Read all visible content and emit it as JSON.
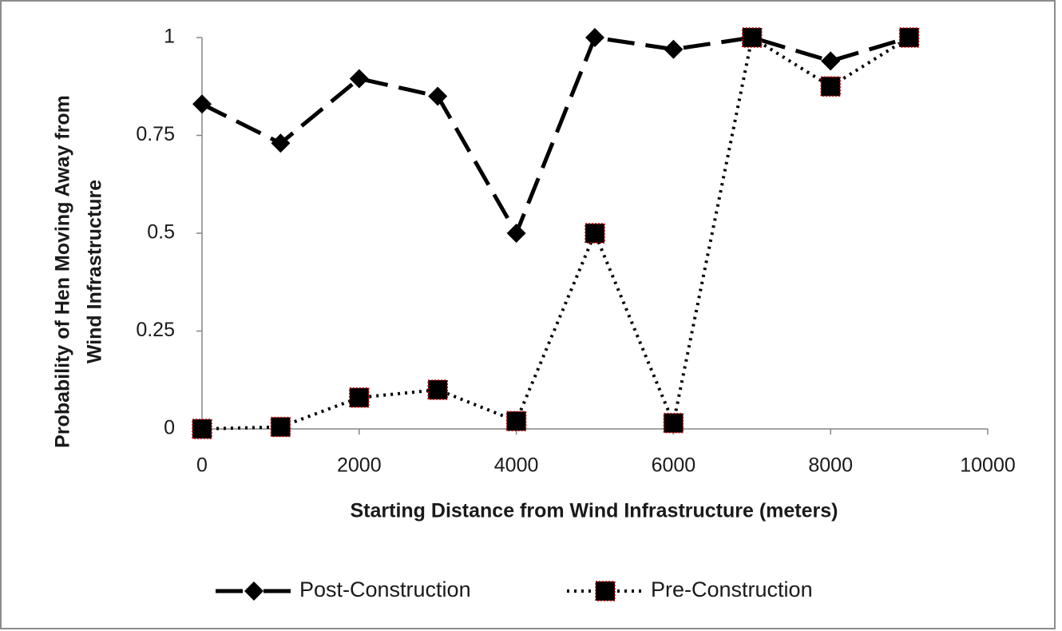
{
  "chart_data": {
    "type": "line",
    "x_label": "Starting Distance from Wind Infrastructure (meters)",
    "y_label": [
      "Probability of Hen Moving  Away from",
      "Wind Infrastructure"
    ],
    "x": [
      0,
      1000,
      2000,
      3000,
      4000,
      5000,
      6000,
      7000,
      8000,
      9000
    ],
    "series": [
      {
        "name": "Post-Construction",
        "color": "#000000",
        "style": "dashed",
        "marker": "diamond",
        "values": [
          0.83,
          0.73,
          0.895,
          0.85,
          0.5,
          1.0,
          0.97,
          1.0,
          0.94,
          1.0
        ]
      },
      {
        "name": "Pre-Construction",
        "color": "#000000",
        "style": "dotted",
        "marker": "square",
        "values": [
          0,
          0.005,
          0.08,
          0.1,
          0.02,
          0.5,
          0.015,
          1.0,
          0.875,
          1.0
        ]
      }
    ],
    "xlim": [
      0,
      10000
    ],
    "xticks": [
      0,
      2000,
      4000,
      6000,
      8000,
      10000
    ],
    "ylim": [
      0,
      1
    ],
    "yticks": [
      0,
      0.25,
      0.5,
      0.75,
      1
    ],
    "legend": "bottom"
  }
}
